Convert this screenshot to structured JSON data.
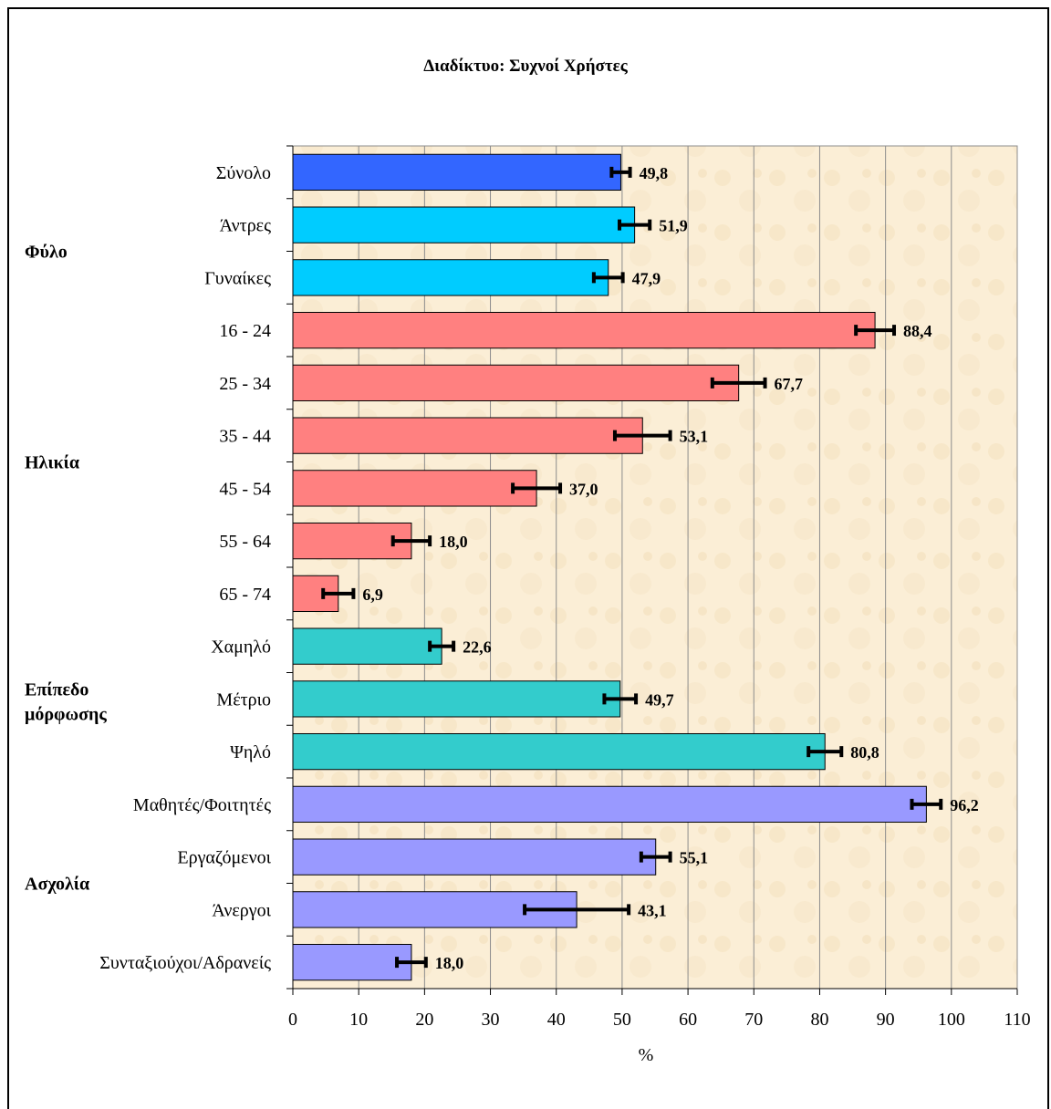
{
  "chart_data": {
    "type": "bar",
    "orientation": "horizontal",
    "title": "Διαδίκτυο: Συχνοί Χρήστες",
    "xlabel": "%",
    "xlim": [
      0,
      110
    ],
    "xticks": [
      "0",
      "10",
      "20",
      "30",
      "40",
      "50",
      "60",
      "70",
      "80",
      "90",
      "100",
      "110"
    ],
    "grid": true,
    "plot_background": "#fbeed6",
    "categories": [
      {
        "label": "Σύνολο",
        "value": 49.8,
        "value_label": "49,8",
        "err_low": 48.4,
        "err_high": 51.2,
        "color": "#3366ff"
      },
      {
        "label": "Άντρες",
        "value": 51.9,
        "value_label": "51,9",
        "err_low": 49.6,
        "err_high": 54.2,
        "color": "#00ccff"
      },
      {
        "label": "Γυναίκες",
        "value": 47.9,
        "value_label": "47,9",
        "err_low": 45.7,
        "err_high": 50.1,
        "color": "#00ccff"
      },
      {
        "label": "16 - 24",
        "value": 88.4,
        "value_label": "88,4",
        "err_low": 85.5,
        "err_high": 91.3,
        "color": "#ff8080"
      },
      {
        "label": "25 - 34",
        "value": 67.7,
        "value_label": "67,7",
        "err_low": 63.7,
        "err_high": 71.7,
        "color": "#ff8080"
      },
      {
        "label": "35 - 44",
        "value": 53.1,
        "value_label": "53,1",
        "err_low": 48.9,
        "err_high": 57.3,
        "color": "#ff8080"
      },
      {
        "label": "45 - 54",
        "value": 37.0,
        "value_label": "37,0",
        "err_low": 33.4,
        "err_high": 40.6,
        "color": "#ff8080"
      },
      {
        "label": "55 - 64",
        "value": 18.0,
        "value_label": "18,0",
        "err_low": 15.2,
        "err_high": 20.8,
        "color": "#ff8080"
      },
      {
        "label": "65 - 74",
        "value": 6.9,
        "value_label": "6,9",
        "err_low": 4.6,
        "err_high": 9.2,
        "color": "#ff8080"
      },
      {
        "label": "Χαμηλό",
        "value": 22.6,
        "value_label": "22,6",
        "err_low": 20.8,
        "err_high": 24.4,
        "color": "#33cccc"
      },
      {
        "label": "Μέτριο",
        "value": 49.7,
        "value_label": "49,7",
        "err_low": 47.3,
        "err_high": 52.1,
        "color": "#33cccc"
      },
      {
        "label": "Ψηλό",
        "value": 80.8,
        "value_label": "80,8",
        "err_low": 78.3,
        "err_high": 83.3,
        "color": "#33cccc"
      },
      {
        "label": "Μαθητές/Φοιτητές",
        "value": 96.2,
        "value_label": "96,2",
        "err_low": 94.0,
        "err_high": 98.4,
        "color": "#9999ff"
      },
      {
        "label": "Εργαζόμενοι",
        "value": 55.1,
        "value_label": "55,1",
        "err_low": 52.9,
        "err_high": 57.3,
        "color": "#9999ff"
      },
      {
        "label": "Άνεργοι",
        "value": 43.1,
        "value_label": "43,1",
        "err_low": 35.2,
        "err_high": 51.0,
        "color": "#9999ff"
      },
      {
        "label": "Συνταξιούχοι/Αδρανείς",
        "value": 18.0,
        "value_label": "18,0",
        "err_low": 15.8,
        "err_high": 20.2,
        "color": "#9999ff"
      }
    ],
    "groups": [
      {
        "label": "Φύλο",
        "rows": [
          1,
          2
        ]
      },
      {
        "label": "Ηλικία",
        "rows": [
          3,
          8
        ]
      },
      {
        "label": "Επίπεδο μόρφωσης",
        "rows": [
          9,
          11
        ]
      },
      {
        "label": "Ασχολία",
        "rows": [
          12,
          15
        ]
      }
    ]
  }
}
